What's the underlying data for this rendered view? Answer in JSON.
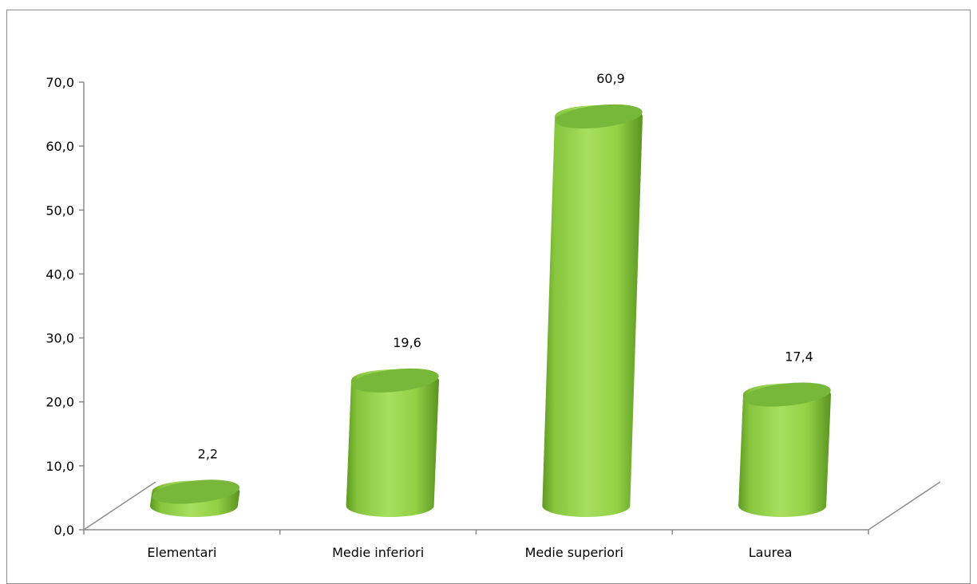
{
  "chart_data": {
    "type": "bar",
    "style": "3d-cylinder",
    "categories": [
      "Elementari",
      "Medie inferiori",
      "Medie superiori",
      "Laurea"
    ],
    "values": [
      2.2,
      19.6,
      60.9,
      17.4
    ],
    "data_labels": [
      "2,2",
      "19,6",
      "60,9",
      "17,4"
    ],
    "ylim": [
      0,
      70
    ],
    "yticks": [
      "0,0",
      "10,0",
      "20,0",
      "30,0",
      "40,0",
      "50,0",
      "60,0",
      "70,0"
    ],
    "grid": false,
    "legend": "none",
    "colors": {
      "bar_light": "#a6e060",
      "bar_mid": "#8fd03f",
      "bar_dark": "#5f9a22",
      "top_fill": "#77b83a",
      "axis": "#8c8c8c"
    }
  }
}
